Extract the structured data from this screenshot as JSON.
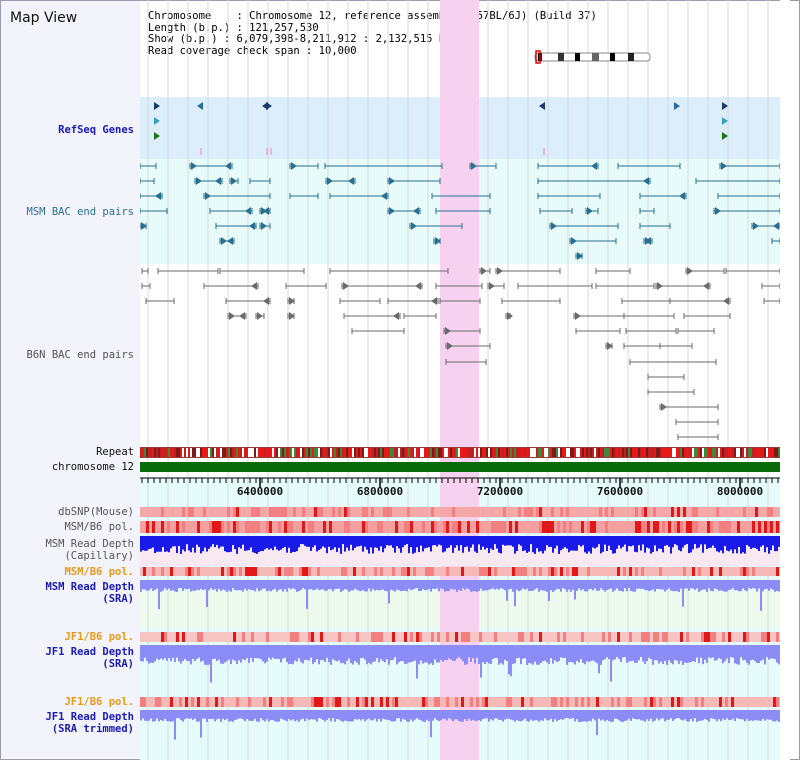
{
  "title": "Map View",
  "info": {
    "chromosome": "Chromosome    : Chromosome 12, reference assembly (C57BL/6J) (Build 37)",
    "length": "Length (b.p.) : 121,257,530",
    "show": "Show (b.p.) : 6,079,398-8,211,912 : 2,132,515 bp",
    "span": "Read coverage check span : 10,000"
  },
  "tracks": {
    "refseq": "RefSeq Genes",
    "msm_bac": "MSM BAC end pairs",
    "b6n_bac": "B6N BAC end pairs",
    "repeat": "Repeat",
    "chromosome": "chromosome 12",
    "dbsnp": "dbSNP(Mouse)",
    "msm_b6_pol": "MSM/B6 pol.",
    "msm_depth_cap_1": "MSM Read Depth",
    "msm_depth_cap_2": "(Capillary)",
    "msm_b6_pol_sra": "MSM/B6 pol.",
    "msm_depth_sra_1": "MSM Read Depth",
    "msm_depth_sra_2": "(SRA)",
    "jf1_b6_pol": "JF1/B6 pol.",
    "jf1_depth_sra_1": "JF1 Read Depth",
    "jf1_depth_sra_2": "(SRA)",
    "jf1_b6_pol_trim": "JF1/B6 pol.",
    "jf1_depth_trim_1": "JF1 Read Depth",
    "jf1_depth_trim_2": "(SRA trimmed)"
  },
  "ruler": {
    "ticks": [
      "6400000",
      "6800000",
      "7200000",
      "7600000",
      "8000000"
    ]
  },
  "colors": {
    "highlight": "#f6d2f0",
    "refseq_bg": "#dceefc",
    "msm_bac_bg": "#e7fbfb",
    "chromosome": "#0a6b0a",
    "depth_blue": "#1a1ae8",
    "depth_light": "#8c8cf6",
    "pol_red": "#e23434"
  }
}
